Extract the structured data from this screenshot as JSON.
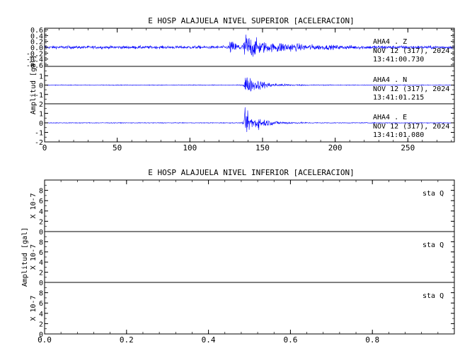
{
  "chart_data": [
    {
      "type": "line",
      "title": "E HOSP ALAJUELA NIVEL SUPERIOR [ACELERACION]",
      "ylabel": "Amplitud [gal]",
      "xlabel": "",
      "xlim": [
        0,
        282
      ],
      "x_ticks": [
        "0",
        "50",
        "100",
        "150",
        "200",
        "250"
      ],
      "x_tick_values": [
        0,
        50,
        100,
        150,
        200,
        250
      ],
      "line_color": "#0000ff",
      "grid": false,
      "panels": [
        {
          "name": "Z",
          "station": "AHA4 . Z",
          "date": "NOV 12 (317), 2024",
          "time": "13:41:00.730",
          "ylim": [
            -0.65,
            0.65
          ],
          "y_ticks": [
            "0.6",
            "0.4",
            "0.2",
            "0.0",
            "-0.2",
            "-0.4",
            "-0.6"
          ],
          "y_tick_values": [
            0.6,
            0.4,
            0.2,
            0.0,
            -0.2,
            -0.4,
            -0.6
          ],
          "noise": 0.07,
          "events": [
            {
              "t": 127,
              "amp": 0.28,
              "decay": 8
            },
            {
              "t": 137.5,
              "amp": 0.6,
              "decay": 12
            },
            {
              "t": 160,
              "amp": 0.12,
              "decay": 30
            }
          ]
        },
        {
          "name": "N",
          "station": "AHA4 . N",
          "date": "NOV 12 (317), 2024",
          "time": "13:41:01.215",
          "ylim": [
            -2,
            2
          ],
          "y_ticks": [
            "1",
            "0",
            "-1"
          ],
          "y_tick_values": [
            1,
            0,
            -1
          ],
          "noise": 0.05,
          "events": [
            {
              "t": 137.5,
              "amp": 1.8,
              "decay": 7
            },
            {
              "t": 145,
              "amp": 0.3,
              "decay": 15
            }
          ]
        },
        {
          "name": "E",
          "station": "AHA4 . E",
          "date": "NOV 12 (317), 2024",
          "time": "13:41:01.080",
          "ylim": [
            -2,
            2
          ],
          "y_ticks": [
            "2",
            "1",
            "0",
            "-1",
            "-2"
          ],
          "y_tick_values": [
            2,
            1,
            0,
            -1,
            -2
          ],
          "noise": 0.05,
          "events": [
            {
              "t": 137.5,
              "amp": 1.9,
              "decay": 7
            },
            {
              "t": 145,
              "amp": 0.35,
              "decay": 15
            }
          ]
        }
      ]
    },
    {
      "type": "line",
      "title": "E HOSP ALAJUELA NIVEL INFERIOR [ACELERACION]",
      "ylabel": "Amplitud [gal]",
      "xlabel": "",
      "xlim": [
        0,
        1
      ],
      "x_ticks": [
        "0.0",
        "0.2",
        "0.4",
        "0.6",
        "0.8"
      ],
      "x_tick_values": [
        0,
        0.2,
        0.4,
        0.6,
        0.8
      ],
      "line_color": "#0000ff",
      "grid": false,
      "panels": [
        {
          "name": "Q1",
          "station": "sta  Q",
          "scale": "X 10-7",
          "ylim": [
            0,
            10
          ],
          "y_ticks": [
            "8",
            "6",
            "4",
            "2",
            "0"
          ],
          "y_tick_values": [
            8,
            6,
            4,
            2,
            0
          ],
          "values": [
            0,
            0
          ]
        },
        {
          "name": "Q2",
          "station": "sta  Q",
          "scale": "X 10-7",
          "ylim": [
            0,
            10
          ],
          "y_ticks": [
            "8",
            "6",
            "4",
            "2",
            "0"
          ],
          "y_tick_values": [
            8,
            6,
            4,
            2,
            0
          ],
          "values": [
            0,
            0
          ]
        },
        {
          "name": "Q3",
          "station": "sta  Q",
          "scale": "X 10-7",
          "ylim": [
            0,
            10
          ],
          "y_ticks": [
            "8",
            "6",
            "4",
            "2",
            "0"
          ],
          "y_tick_values": [
            8,
            6,
            4,
            2,
            0
          ],
          "values": [
            0,
            0
          ]
        }
      ]
    }
  ]
}
